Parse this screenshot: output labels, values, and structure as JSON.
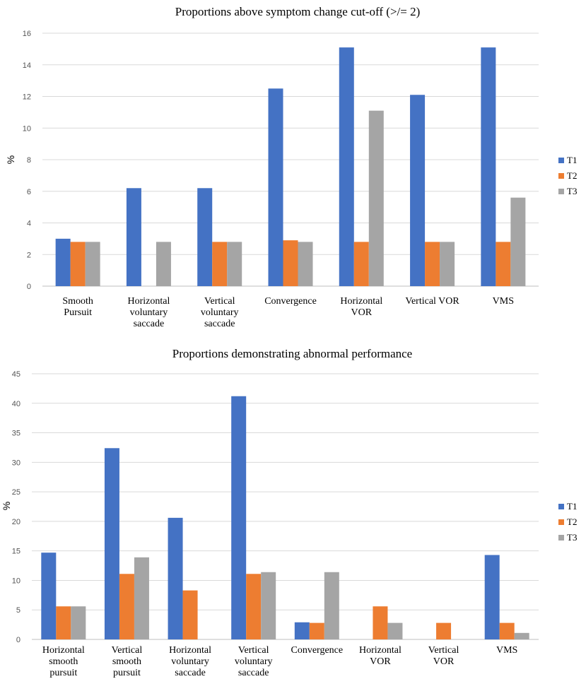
{
  "chart_data": [
    {
      "type": "bar",
      "title": "Proportions above symptom change cut-off (>/= 2)",
      "ylabel": "%",
      "xlabel": "",
      "ylim": [
        0,
        16
      ],
      "yticks": [
        0,
        2,
        4,
        6,
        8,
        10,
        12,
        14,
        16
      ],
      "grid": true,
      "legend_position": "right",
      "categories": [
        [
          "Smooth",
          "Pursuit"
        ],
        [
          "Horizontal",
          "voluntary",
          "saccade"
        ],
        [
          "Vertical",
          "voluntary",
          "saccade"
        ],
        [
          "Convergence"
        ],
        [
          "Horizontal",
          "VOR"
        ],
        [
          "Vertical VOR"
        ],
        [
          "VMS"
        ]
      ],
      "series": [
        {
          "name": "T1",
          "color": "#4472C4",
          "values": [
            3.0,
            6.2,
            6.2,
            12.5,
            15.1,
            12.1,
            15.1
          ]
        },
        {
          "name": "T2",
          "color": "#ED7D31",
          "values": [
            2.8,
            0,
            2.8,
            2.9,
            2.8,
            2.8,
            2.8
          ]
        },
        {
          "name": "T3",
          "color": "#A5A5A5",
          "values": [
            2.8,
            2.8,
            2.8,
            2.8,
            11.1,
            2.8,
            5.6
          ]
        }
      ]
    },
    {
      "type": "bar",
      "title": "Proportions demonstrating abnormal performance",
      "ylabel": "%",
      "xlabel": "",
      "ylim": [
        0,
        45
      ],
      "yticks": [
        0,
        5,
        10,
        15,
        20,
        25,
        30,
        35,
        40,
        45
      ],
      "grid": true,
      "legend_position": "right",
      "categories": [
        [
          "Horizontal",
          "smooth",
          "pursuit"
        ],
        [
          "Vertical",
          "smooth",
          "pursuit"
        ],
        [
          "Horizontal",
          "voluntary",
          "saccade"
        ],
        [
          "Vertical",
          "voluntary",
          "saccade"
        ],
        [
          "Convergence"
        ],
        [
          "Horizontal",
          "VOR"
        ],
        [
          "Vertical",
          "VOR"
        ],
        [
          "VMS"
        ]
      ],
      "series": [
        {
          "name": "T1",
          "color": "#4472C4",
          "values": [
            14.7,
            32.4,
            20.6,
            41.2,
            2.9,
            0,
            0,
            14.3
          ]
        },
        {
          "name": "T2",
          "color": "#ED7D31",
          "values": [
            5.6,
            11.1,
            8.3,
            11.1,
            2.8,
            5.6,
            2.8,
            2.8
          ]
        },
        {
          "name": "T3",
          "color": "#A5A5A5",
          "values": [
            5.6,
            13.9,
            0,
            11.4,
            11.4,
            2.8,
            0,
            1.1
          ]
        }
      ]
    }
  ]
}
